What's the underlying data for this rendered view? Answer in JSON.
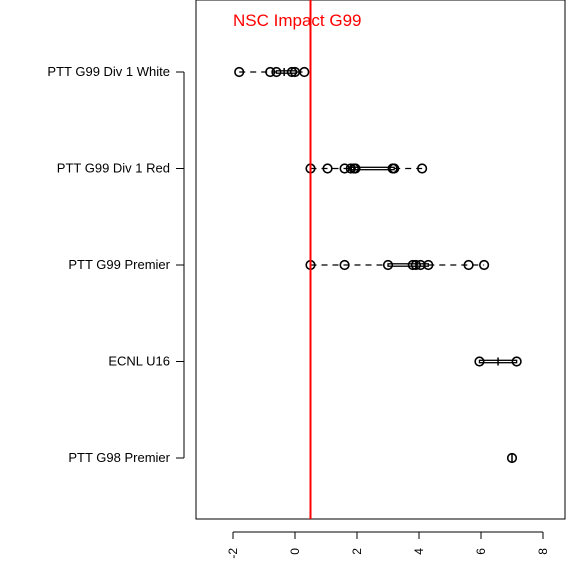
{
  "chart_data": {
    "type": "box",
    "title": "",
    "xlabel": "",
    "ylabel": "",
    "xlim": [
      -2.9,
      8.6
    ],
    "x_ticks": [
      -2,
      0,
      2,
      4,
      6,
      8
    ],
    "x_tick_labels": [
      "-2",
      "0",
      "2",
      "4",
      "6",
      "8"
    ],
    "grid": false,
    "categories": [
      "PTT G99 Div 1 White",
      "PTT G99 Div 1 Red",
      "PTT G99 Premier",
      "ECNL U16",
      "PTT G98 Premier"
    ],
    "series": [
      {
        "category": "PTT G99 Div 1 White",
        "min": -1.8,
        "q1": -0.6,
        "median": -0.35,
        "q3": 0.05,
        "max": 0.3,
        "points": [
          -1.8,
          -0.8,
          -0.6,
          -0.1,
          0.0,
          0.3
        ]
      },
      {
        "category": "PTT G99 Div 1 Red",
        "min": 0.5,
        "q1": 1.8,
        "median": 1.9,
        "q3": 3.2,
        "max": 4.1,
        "points": [
          0.5,
          1.05,
          1.6,
          1.8,
          1.9,
          1.95,
          3.15,
          3.2,
          4.1
        ]
      },
      {
        "category": "PTT G99 Premier",
        "min": 0.5,
        "q1": 3.0,
        "median": 3.9,
        "q3": 4.3,
        "max": 6.1,
        "points": [
          0.5,
          1.6,
          3.0,
          3.8,
          3.9,
          4.05,
          4.3,
          5.6,
          6.1
        ]
      },
      {
        "category": "ECNL U16",
        "min": 5.95,
        "q1": 5.95,
        "median": 6.55,
        "q3": 7.15,
        "max": 7.15,
        "points": [
          5.95,
          7.15
        ]
      },
      {
        "category": "PTT G98 Premier",
        "min": 7.0,
        "q1": 7.0,
        "median": 7.0,
        "q3": 7.0,
        "max": 7.0,
        "points": [
          7.0
        ]
      }
    ],
    "reference_line": {
      "x": 0.5,
      "label": "NSC Impact G99",
      "color": "#ff0000"
    }
  }
}
